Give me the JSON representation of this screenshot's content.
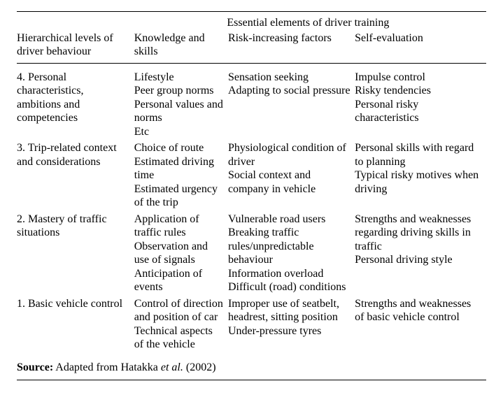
{
  "header": {
    "spanning": "Essential elements of driver training",
    "col1": "Hierarchical levels of driver behaviour",
    "col2": "Knowledge and skills",
    "col3": "Risk-increasing factors",
    "col4": "Self-evaluation"
  },
  "rows": [
    {
      "level": "4. Personal characteristics, ambitions and competencies",
      "knowledge": "Lifestyle\nPeer group norms\nPersonal values and norms\nEtc",
      "risk": "Sensation seeking\nAdapting to social pressure",
      "self": "Impulse control\nRisky tendencies\nPersonal risky characteristics"
    },
    {
      "level": "3. Trip-related context and considerations",
      "knowledge": "Choice of route\nEstimated driving time\nEstimated urgency of the trip",
      "risk": "Physiological condition of driver\nSocial context and company in vehicle",
      "self": "Personal skills with regard to planning\nTypical risky motives when driving"
    },
    {
      "level": "2. Mastery of traffic situations",
      "knowledge": "Application of traffic rules\nObservation and use of signals\nAnticipation of events",
      "risk": "Vulnerable road users\nBreaking traffic rules/unpredictable behaviour\nInformation overload\nDifficult (road) conditions",
      "self": "Strengths and weaknesses regarding driving skills in traffic\nPersonal driving style"
    },
    {
      "level": "1. Basic vehicle control",
      "knowledge": "Control of direction and position of car\nTechnical aspects of the vehicle",
      "risk": "Improper use of seatbelt, headrest, sitting position\nUnder-pressure tyres",
      "self": "Strengths and weaknesses of basic vehicle control"
    }
  ],
  "source": {
    "label": "Source:",
    "text_before": " Adapted from Hatakka ",
    "italic": "et al.",
    "text_after": " (2002)"
  },
  "style": {
    "font_family": "Times New Roman",
    "font_size_pt": 12,
    "text_color": "#000000",
    "background_color": "#ffffff",
    "rule_color": "#000000",
    "col_widths_pct": [
      25,
      20,
      27,
      28
    ]
  }
}
